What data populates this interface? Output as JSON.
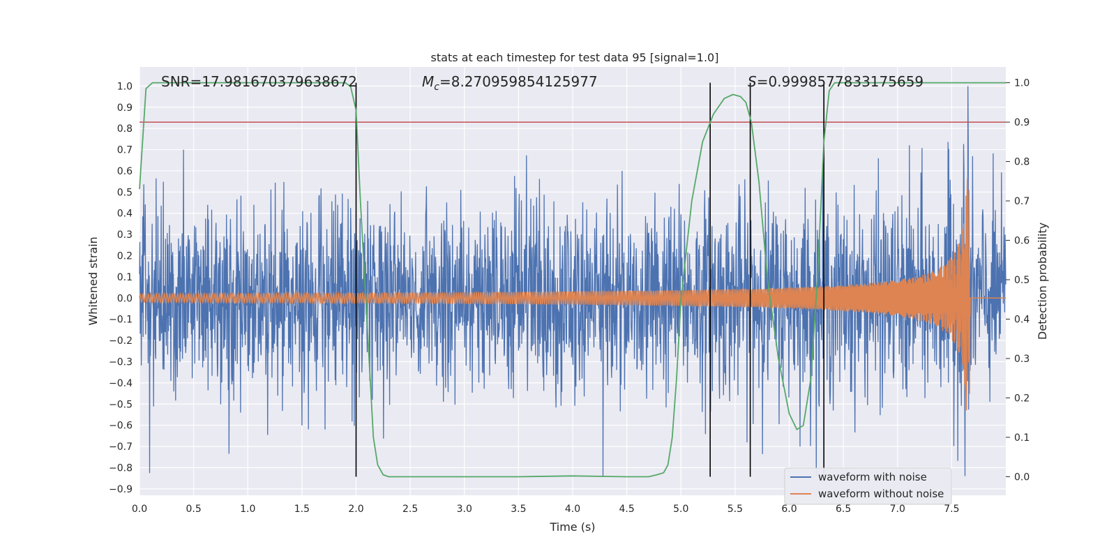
{
  "chart_data": {
    "type": "line",
    "title": "stats at each timestep for test data 95 [signal=1.0]",
    "xlabel": "Time (s)",
    "ylabel": "Whitened strain",
    "y2label": "Detection probability",
    "xlim": [
      0.0,
      8.0
    ],
    "ylim": [
      -0.93,
      1.09
    ],
    "y2lim": [
      -0.047,
      1.04
    ],
    "xticks": [
      "0.0",
      "0.5",
      "1.0",
      "1.5",
      "2.0",
      "2.5",
      "3.0",
      "3.5",
      "4.0",
      "4.5",
      "5.0",
      "5.5",
      "6.0",
      "6.5",
      "7.0",
      "7.5"
    ],
    "xtick_values": [
      0,
      0.5,
      1,
      1.5,
      2,
      2.5,
      3,
      3.5,
      4,
      4.5,
      5,
      5.5,
      6,
      6.5,
      7,
      7.5
    ],
    "yticks": [
      "1.0",
      "0.9",
      "0.8",
      "0.7",
      "0.6",
      "0.5",
      "0.4",
      "0.3",
      "0.2",
      "0.1",
      "0.0",
      "−0.1",
      "−0.2",
      "−0.3",
      "−0.4",
      "−0.5",
      "−0.6",
      "−0.7",
      "−0.8",
      "−0.9"
    ],
    "ytick_values": [
      1.0,
      0.9,
      0.8,
      0.7,
      0.6,
      0.5,
      0.4,
      0.3,
      0.2,
      0.1,
      0.0,
      -0.1,
      -0.2,
      -0.3,
      -0.4,
      -0.5,
      -0.6,
      -0.7,
      -0.8,
      -0.9
    ],
    "y2ticks": [
      "1.0",
      "0.9",
      "0.8",
      "0.7",
      "0.6",
      "0.5",
      "0.4",
      "0.3",
      "0.2",
      "0.1",
      "0.0"
    ],
    "y2tick_values": [
      1.0,
      0.9,
      0.8,
      0.7,
      0.6,
      0.5,
      0.4,
      0.3,
      0.2,
      0.1,
      0.0
    ],
    "annotations": {
      "snr": "SNR=17.981670379638672",
      "mc_symbol": "M",
      "mc_sub": "c",
      "mc_value": "=8.270959854125977",
      "s_symbol": "S",
      "s_value": "=0.9998577833175659"
    },
    "threshold": 0.9,
    "vertical_lines_x": [
      2.0,
      5.27,
      5.64,
      6.32
    ],
    "series": [
      {
        "name": "waveform with noise",
        "color": "#4c72b0",
        "axis": "left",
        "noise_std": 0.2,
        "max": 1.0,
        "min": -0.84
      },
      {
        "name": "waveform without noise",
        "color": "#dd8452",
        "axis": "left",
        "chirp_start_amp": 0.02,
        "peak_amp": 0.62,
        "merger_time": 7.67
      },
      {
        "name": "detection probability",
        "color": "#55a868",
        "axis": "right",
        "x": [
          0.0,
          0.06,
          0.12,
          0.2,
          0.4,
          0.8,
          1.2,
          1.6,
          1.9,
          1.95,
          2.0,
          2.04,
          2.08,
          2.12,
          2.16,
          2.2,
          2.25,
          2.3,
          2.4,
          3.0,
          3.5,
          4.0,
          4.5,
          4.7,
          4.78,
          4.84,
          4.88,
          4.92,
          4.96,
          5.0,
          5.1,
          5.2,
          5.3,
          5.4,
          5.48,
          5.55,
          5.6,
          5.65,
          5.72,
          5.8,
          5.9,
          6.0,
          6.07,
          6.13,
          6.2,
          6.26,
          6.32,
          6.37,
          6.42,
          6.47,
          6.55,
          7.0,
          7.5,
          8.0
        ],
        "y": [
          0.73,
          0.985,
          1.0,
          1.0,
          1.0,
          1.0,
          1.0,
          1.0,
          1.0,
          0.99,
          0.93,
          0.7,
          0.5,
          0.3,
          0.1,
          0.03,
          0.005,
          0.0,
          0.0,
          0.0,
          0.0,
          0.002,
          0.0,
          0.0,
          0.005,
          0.01,
          0.03,
          0.1,
          0.25,
          0.45,
          0.7,
          0.85,
          0.92,
          0.96,
          0.97,
          0.965,
          0.95,
          0.9,
          0.75,
          0.5,
          0.3,
          0.16,
          0.12,
          0.13,
          0.25,
          0.5,
          0.85,
          0.98,
          1.0,
          1.0,
          1.0,
          1.0,
          1.0,
          1.0
        ]
      }
    ],
    "legend": {
      "placement": "lower-right",
      "entries": [
        "waveform with noise",
        "waveform without noise"
      ]
    },
    "grid": true,
    "colors": {
      "background": "#eaeaf2",
      "grid": "#ffffff",
      "threshold": "#c44e52",
      "vline": "#000000"
    }
  }
}
